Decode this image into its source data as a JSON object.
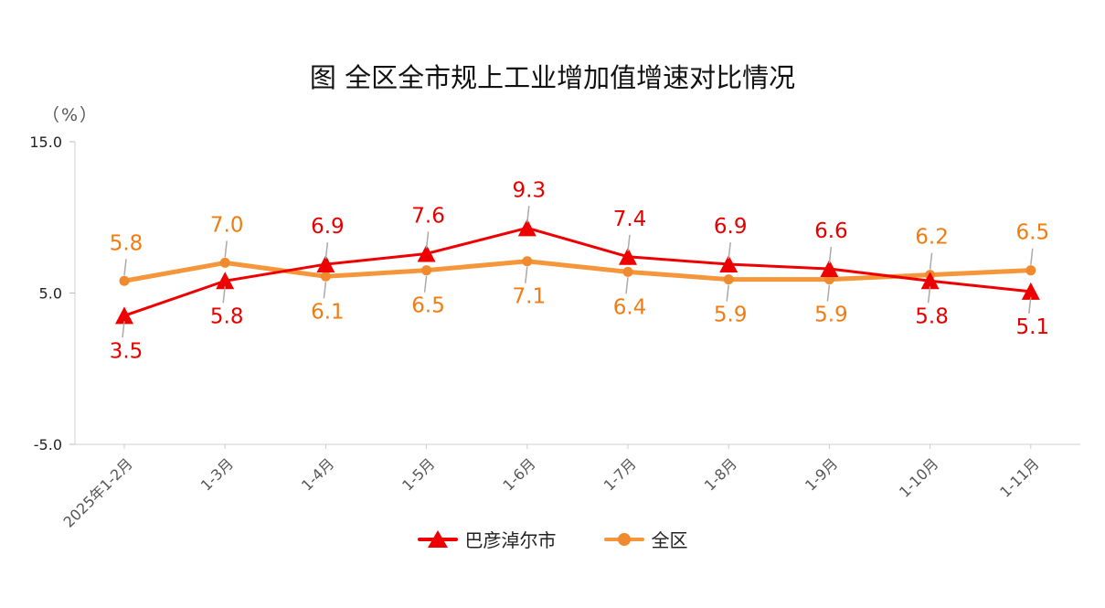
{
  "chart_data": {
    "type": "line",
    "title": "图 全区全市规上工业增加值增速对比情况",
    "ylabel": "（%）",
    "xlabel": "",
    "ylim": [
      -5.0,
      15.0
    ],
    "yticks": [
      "15.0",
      "5.0",
      "-5.0"
    ],
    "ytick_values": [
      15.0,
      5.0,
      -5.0
    ],
    "categories": [
      "2025年1-2月",
      "1-3月",
      "1-4月",
      "1-5月",
      "1-6月",
      "1-7月",
      "1-8月",
      "1-9月",
      "1-10月",
      "1-11月"
    ],
    "series": [
      {
        "name": "巴彦淖尔市",
        "values": [
          3.5,
          5.8,
          6.9,
          7.6,
          9.3,
          7.4,
          6.9,
          6.6,
          5.8,
          5.1
        ],
        "labels": [
          "3.5",
          "5.8",
          "6.9",
          "7.6",
          "9.3",
          "7.4",
          "6.9",
          "6.6",
          "5.8",
          "5.1"
        ],
        "label_side": [
          "below",
          "below",
          "above",
          "above",
          "above",
          "above",
          "above",
          "above",
          "below",
          "below"
        ],
        "marker": "triangle",
        "color": "#ee0000",
        "label_color": "#e60000"
      },
      {
        "name": "全区",
        "values": [
          5.8,
          7.0,
          6.1,
          6.5,
          7.1,
          6.4,
          5.9,
          5.9,
          6.2,
          6.5
        ],
        "labels": [
          "5.8",
          "7.0",
          "6.1",
          "6.5",
          "7.1",
          "6.4",
          "5.9",
          "5.9",
          "6.2",
          "6.5"
        ],
        "label_side": [
          "above",
          "above",
          "below",
          "below",
          "below",
          "below",
          "below",
          "below",
          "above",
          "above"
        ],
        "marker": "circle",
        "color": "#f5963a",
        "label_color": "#f07c12"
      }
    ],
    "grid": false,
    "legend_position": "bottom"
  }
}
